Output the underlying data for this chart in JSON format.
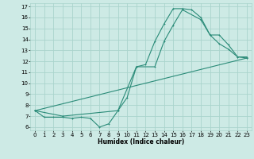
{
  "xlabel": "Humidex (Indice chaleur)",
  "line_color": "#2a8b78",
  "background_color": "#cdeae5",
  "grid_color": "#aad4cc",
  "xlim": [
    -0.5,
    23.5
  ],
  "ylim": [
    5.7,
    17.3
  ],
  "yticks": [
    6,
    7,
    8,
    9,
    10,
    11,
    12,
    13,
    14,
    15,
    16,
    17
  ],
  "xticks": [
    0,
    1,
    2,
    3,
    4,
    5,
    6,
    7,
    8,
    9,
    10,
    11,
    12,
    13,
    14,
    15,
    16,
    17,
    18,
    19,
    20,
    21,
    22,
    23
  ],
  "line1_x": [
    0,
    1,
    2,
    3,
    4,
    5,
    6,
    7,
    8,
    9,
    10,
    11,
    12,
    13,
    14,
    15,
    16,
    17,
    18,
    19,
    20,
    21,
    22,
    23
  ],
  "line1_y": [
    7.5,
    6.9,
    6.9,
    6.9,
    6.8,
    6.9,
    6.8,
    6.0,
    6.3,
    7.5,
    8.7,
    11.5,
    11.7,
    13.8,
    15.4,
    16.8,
    16.8,
    16.7,
    16.0,
    14.4,
    13.6,
    13.1,
    12.4,
    12.3
  ],
  "line2_x": [
    0,
    3,
    9,
    11,
    13,
    14,
    15,
    16,
    18,
    19,
    20,
    21,
    22,
    23
  ],
  "line2_y": [
    7.5,
    7.0,
    7.5,
    11.5,
    11.5,
    13.8,
    15.3,
    16.7,
    15.8,
    14.4,
    14.4,
    13.5,
    12.4,
    12.4
  ],
  "line3_x": [
    0,
    23
  ],
  "line3_y": [
    7.5,
    12.3
  ]
}
